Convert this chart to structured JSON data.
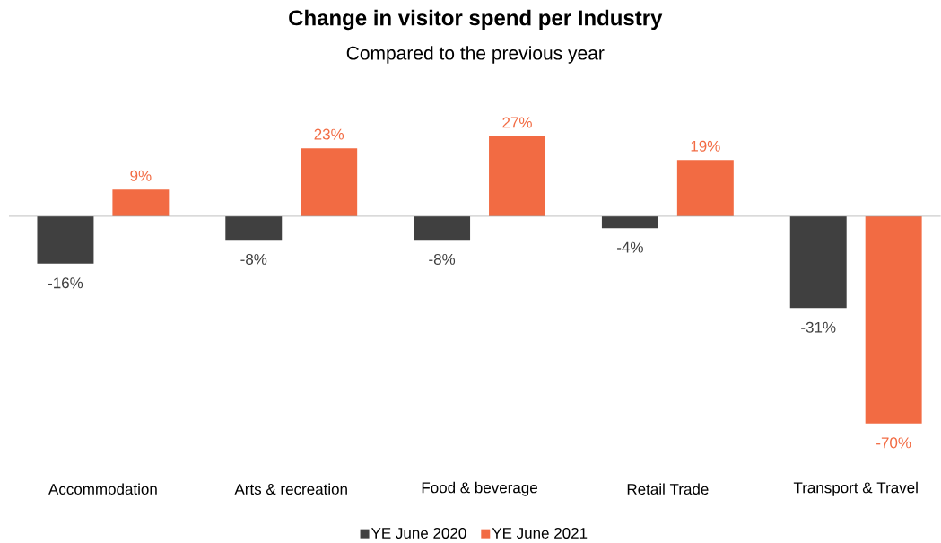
{
  "chart_data": {
    "type": "bar",
    "title": "Change in visitor spend per Industry",
    "subtitle": "Compared to the previous year",
    "categories": [
      "Accommodation",
      "Arts & recreation",
      "Food & beverage",
      "Retail Trade",
      "Transport & Travel"
    ],
    "series": [
      {
        "name": "YE June 2020",
        "color": "#404040",
        "values": [
          -16,
          -8,
          -8,
          -4,
          -31
        ],
        "value_labels": [
          "-16%",
          "-8%",
          "-8%",
          "-4%",
          "-31%"
        ]
      },
      {
        "name": "YE June 2021",
        "color": "#f26b43",
        "values": [
          9,
          23,
          27,
          19,
          -70
        ],
        "value_labels": [
          "9%",
          "23%",
          "27%",
          "19%",
          "-70%"
        ]
      }
    ],
    "legend": "bottom"
  }
}
